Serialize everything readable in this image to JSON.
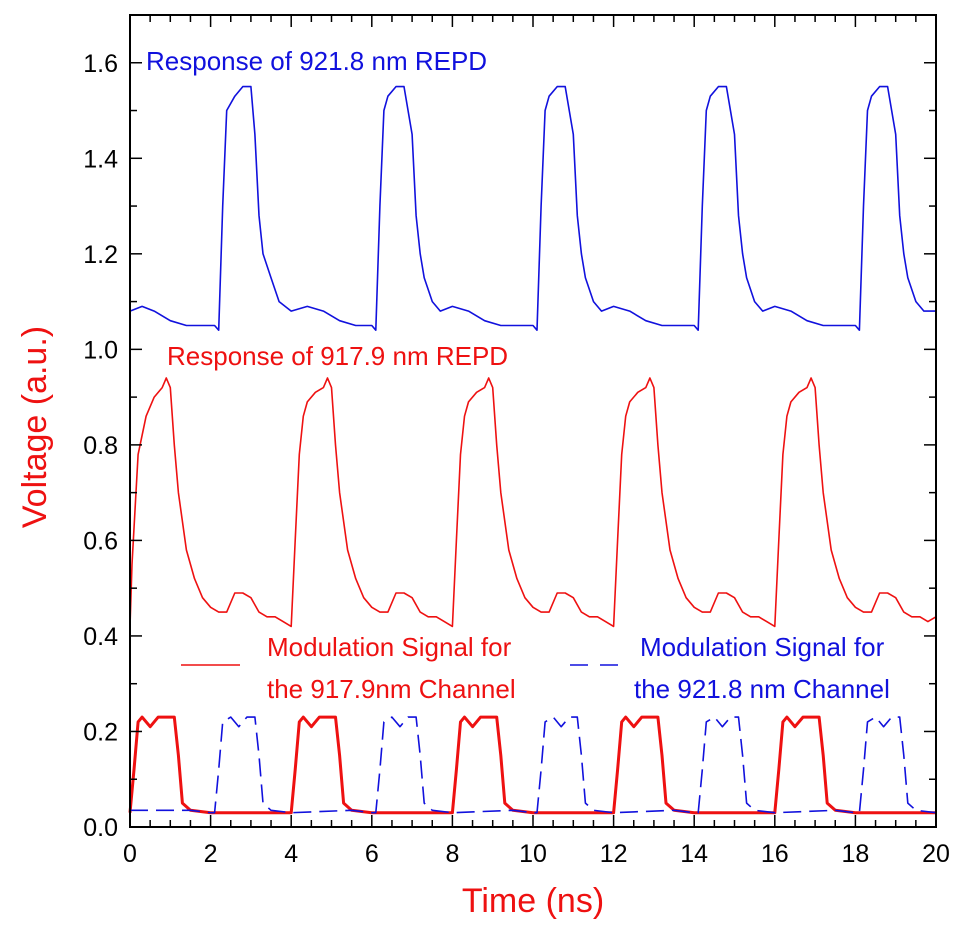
{
  "chart_data": {
    "type": "line",
    "xlabel": "Time (ns)",
    "ylabel": "Voltage (a.u.)",
    "xlim": [
      0,
      20
    ],
    "ylim": [
      0,
      1.7
    ],
    "x_ticks": [
      "0",
      "2",
      "4",
      "6",
      "8",
      "10",
      "12",
      "14",
      "16",
      "18",
      "20"
    ],
    "y_ticks": [
      "0.0",
      "0.2",
      "0.4",
      "0.6",
      "0.8",
      "1.0",
      "1.2",
      "1.4",
      "1.6"
    ],
    "grid": false,
    "colors": {
      "red": "#ee1111",
      "blue": "#1111dd",
      "axis": "#000000"
    },
    "annotations": {
      "blue_response": "Response of 921.8 nm REPD",
      "red_response": "Response of 917.9 nm REPD",
      "red_legend_line1": "Modulation Signal for",
      "red_legend_line2": "the 917.9nm Channel",
      "blue_legend_line1": "Modulation Signal for",
      "blue_legend_line2": "the 921.8 nm Channel"
    },
    "series": [
      {
        "name": "Response of 921.8 nm REPD",
        "color": "#1111dd",
        "style": "solid",
        "x": [
          0,
          0.3,
          0.6,
          1.0,
          1.4,
          1.8,
          2.1,
          2.2,
          2.3,
          2.4,
          2.6,
          2.8,
          3.0,
          3.1,
          3.2,
          3.3,
          3.5,
          3.7,
          4.0,
          4.4,
          4.8,
          5.2,
          5.6,
          6.0,
          6.1,
          6.2,
          6.3,
          6.4,
          6.6,
          6.8,
          7.0,
          7.1,
          7.2,
          7.3,
          7.5,
          7.7,
          8.0,
          8.4,
          8.8,
          9.2,
          9.6,
          10.0,
          10.1,
          10.2,
          10.3,
          10.4,
          10.6,
          10.8,
          11.0,
          11.1,
          11.2,
          11.3,
          11.5,
          11.7,
          12.0,
          12.4,
          12.8,
          13.2,
          13.6,
          14.0,
          14.1,
          14.2,
          14.3,
          14.4,
          14.6,
          14.8,
          15.0,
          15.1,
          15.2,
          15.3,
          15.5,
          15.7,
          16.0,
          16.4,
          16.8,
          17.2,
          17.6,
          18.0,
          18.1,
          18.2,
          18.3,
          18.4,
          18.6,
          18.8,
          19.0,
          19.1,
          19.2,
          19.3,
          19.5,
          19.7,
          20.0
        ],
        "y": [
          1.08,
          1.09,
          1.08,
          1.06,
          1.05,
          1.05,
          1.05,
          1.04,
          1.3,
          1.5,
          1.53,
          1.55,
          1.55,
          1.45,
          1.28,
          1.2,
          1.15,
          1.1,
          1.08,
          1.09,
          1.08,
          1.06,
          1.05,
          1.05,
          1.04,
          1.3,
          1.5,
          1.53,
          1.55,
          1.55,
          1.45,
          1.28,
          1.2,
          1.15,
          1.1,
          1.08,
          1.09,
          1.08,
          1.06,
          1.05,
          1.05,
          1.05,
          1.04,
          1.3,
          1.5,
          1.53,
          1.55,
          1.55,
          1.45,
          1.28,
          1.2,
          1.15,
          1.1,
          1.08,
          1.09,
          1.08,
          1.06,
          1.05,
          1.05,
          1.05,
          1.04,
          1.3,
          1.5,
          1.53,
          1.55,
          1.55,
          1.45,
          1.28,
          1.2,
          1.15,
          1.1,
          1.08,
          1.09,
          1.08,
          1.06,
          1.05,
          1.05,
          1.05,
          1.04,
          1.3,
          1.5,
          1.53,
          1.55,
          1.55,
          1.45,
          1.28,
          1.2,
          1.15,
          1.1,
          1.08,
          1.08
        ]
      },
      {
        "name": "Response of 917.9 nm REPD",
        "color": "#ee1111",
        "style": "solid",
        "x": [
          0,
          0.05,
          0.2,
          0.4,
          0.6,
          0.8,
          0.9,
          1.0,
          1.1,
          1.2,
          1.4,
          1.6,
          1.8,
          2.0,
          2.2,
          2.4,
          2.6,
          2.8,
          3.0,
          3.2,
          3.4,
          3.6,
          3.8,
          4.0,
          4.1,
          4.2,
          4.3,
          4.4,
          4.6,
          4.8,
          4.9,
          5.0,
          5.1,
          5.2,
          5.4,
          5.6,
          5.8,
          6.0,
          6.2,
          6.4,
          6.6,
          6.8,
          7.0,
          7.2,
          7.4,
          7.6,
          7.8,
          8.0,
          8.1,
          8.2,
          8.3,
          8.4,
          8.6,
          8.8,
          8.9,
          9.0,
          9.1,
          9.2,
          9.4,
          9.6,
          9.8,
          10.0,
          10.2,
          10.4,
          10.6,
          10.8,
          11.0,
          11.2,
          11.4,
          11.6,
          11.8,
          12.0,
          12.1,
          12.2,
          12.3,
          12.4,
          12.6,
          12.8,
          12.9,
          13.0,
          13.1,
          13.2,
          13.4,
          13.6,
          13.8,
          14.0,
          14.2,
          14.4,
          14.6,
          14.8,
          15.0,
          15.2,
          15.4,
          15.6,
          15.8,
          16.0,
          16.1,
          16.2,
          16.3,
          16.4,
          16.6,
          16.8,
          16.9,
          17.0,
          17.1,
          17.2,
          17.4,
          17.6,
          17.8,
          18.0,
          18.2,
          18.4,
          18.6,
          18.8,
          19.0,
          19.2,
          19.4,
          19.6,
          19.8,
          20.0
        ],
        "y": [
          0.42,
          0.55,
          0.78,
          0.86,
          0.9,
          0.92,
          0.94,
          0.92,
          0.8,
          0.7,
          0.58,
          0.52,
          0.48,
          0.46,
          0.45,
          0.45,
          0.49,
          0.49,
          0.48,
          0.45,
          0.44,
          0.44,
          0.43,
          0.42,
          0.6,
          0.78,
          0.86,
          0.89,
          0.91,
          0.92,
          0.94,
          0.92,
          0.8,
          0.7,
          0.58,
          0.52,
          0.48,
          0.46,
          0.45,
          0.45,
          0.49,
          0.49,
          0.48,
          0.45,
          0.44,
          0.44,
          0.43,
          0.42,
          0.6,
          0.78,
          0.86,
          0.89,
          0.91,
          0.92,
          0.94,
          0.92,
          0.8,
          0.7,
          0.58,
          0.52,
          0.48,
          0.46,
          0.45,
          0.45,
          0.49,
          0.49,
          0.48,
          0.45,
          0.44,
          0.44,
          0.43,
          0.42,
          0.6,
          0.78,
          0.86,
          0.89,
          0.91,
          0.92,
          0.94,
          0.92,
          0.8,
          0.7,
          0.58,
          0.52,
          0.48,
          0.46,
          0.45,
          0.45,
          0.49,
          0.49,
          0.48,
          0.45,
          0.44,
          0.44,
          0.43,
          0.42,
          0.6,
          0.78,
          0.86,
          0.89,
          0.91,
          0.92,
          0.94,
          0.92,
          0.8,
          0.7,
          0.58,
          0.52,
          0.48,
          0.46,
          0.45,
          0.45,
          0.49,
          0.49,
          0.48,
          0.45,
          0.44,
          0.44,
          0.43,
          0.44
        ]
      },
      {
        "name": "Modulation Signal for the 917.9nm Channel",
        "color": "#ee1111",
        "style": "solid-thick",
        "x": [
          0,
          0.1,
          0.2,
          0.3,
          0.5,
          0.7,
          0.9,
          1.1,
          1.2,
          1.3,
          1.5,
          2.0,
          3.5,
          4.0,
          4.1,
          4.2,
          4.3,
          4.5,
          4.7,
          4.9,
          5.1,
          5.2,
          5.3,
          5.5,
          6.0,
          7.5,
          8.0,
          8.1,
          8.2,
          8.3,
          8.5,
          8.7,
          8.9,
          9.1,
          9.2,
          9.3,
          9.5,
          10.0,
          11.5,
          12.0,
          12.1,
          12.2,
          12.3,
          12.5,
          12.7,
          12.9,
          13.1,
          13.2,
          13.3,
          13.5,
          14.0,
          15.5,
          16.0,
          16.1,
          16.2,
          16.3,
          16.5,
          16.7,
          16.9,
          17.1,
          17.2,
          17.3,
          17.5,
          18.0,
          20.0
        ],
        "y": [
          0.03,
          0.12,
          0.22,
          0.23,
          0.21,
          0.23,
          0.23,
          0.23,
          0.15,
          0.05,
          0.035,
          0.03,
          0.03,
          0.03,
          0.12,
          0.22,
          0.23,
          0.21,
          0.23,
          0.23,
          0.23,
          0.15,
          0.05,
          0.035,
          0.03,
          0.03,
          0.03,
          0.12,
          0.22,
          0.23,
          0.21,
          0.23,
          0.23,
          0.23,
          0.15,
          0.05,
          0.035,
          0.03,
          0.03,
          0.03,
          0.12,
          0.22,
          0.23,
          0.21,
          0.23,
          0.23,
          0.23,
          0.15,
          0.05,
          0.035,
          0.03,
          0.03,
          0.03,
          0.12,
          0.22,
          0.23,
          0.21,
          0.23,
          0.23,
          0.23,
          0.15,
          0.05,
          0.035,
          0.03,
          0.03
        ]
      },
      {
        "name": "Modulation Signal for the 921.8 nm Channel",
        "color": "#1111dd",
        "style": "dashed",
        "x": [
          0,
          1.5,
          2.0,
          2.1,
          2.2,
          2.3,
          2.5,
          2.7,
          2.9,
          3.1,
          3.2,
          3.3,
          3.5,
          4.0,
          5.5,
          6.0,
          6.1,
          6.2,
          6.3,
          6.5,
          6.7,
          6.9,
          7.1,
          7.2,
          7.3,
          7.5,
          8.0,
          9.5,
          10.0,
          10.1,
          10.2,
          10.3,
          10.5,
          10.7,
          10.9,
          11.1,
          11.2,
          11.3,
          11.5,
          12.0,
          13.5,
          14.0,
          14.1,
          14.2,
          14.3,
          14.5,
          14.7,
          14.9,
          15.1,
          15.2,
          15.3,
          15.5,
          16.0,
          17.5,
          18.0,
          18.1,
          18.2,
          18.3,
          18.5,
          18.7,
          18.9,
          19.1,
          19.2,
          19.3,
          19.5,
          20.0
        ],
        "y": [
          0.035,
          0.035,
          0.03,
          0.03,
          0.12,
          0.22,
          0.23,
          0.21,
          0.23,
          0.23,
          0.15,
          0.05,
          0.035,
          0.03,
          0.035,
          0.03,
          0.03,
          0.12,
          0.22,
          0.23,
          0.21,
          0.23,
          0.23,
          0.15,
          0.05,
          0.035,
          0.03,
          0.035,
          0.03,
          0.03,
          0.12,
          0.22,
          0.23,
          0.21,
          0.23,
          0.23,
          0.15,
          0.05,
          0.035,
          0.03,
          0.035,
          0.03,
          0.03,
          0.12,
          0.22,
          0.23,
          0.21,
          0.23,
          0.23,
          0.15,
          0.05,
          0.035,
          0.03,
          0.035,
          0.03,
          0.03,
          0.12,
          0.22,
          0.23,
          0.21,
          0.23,
          0.23,
          0.15,
          0.05,
          0.035,
          0.03
        ]
      }
    ]
  }
}
